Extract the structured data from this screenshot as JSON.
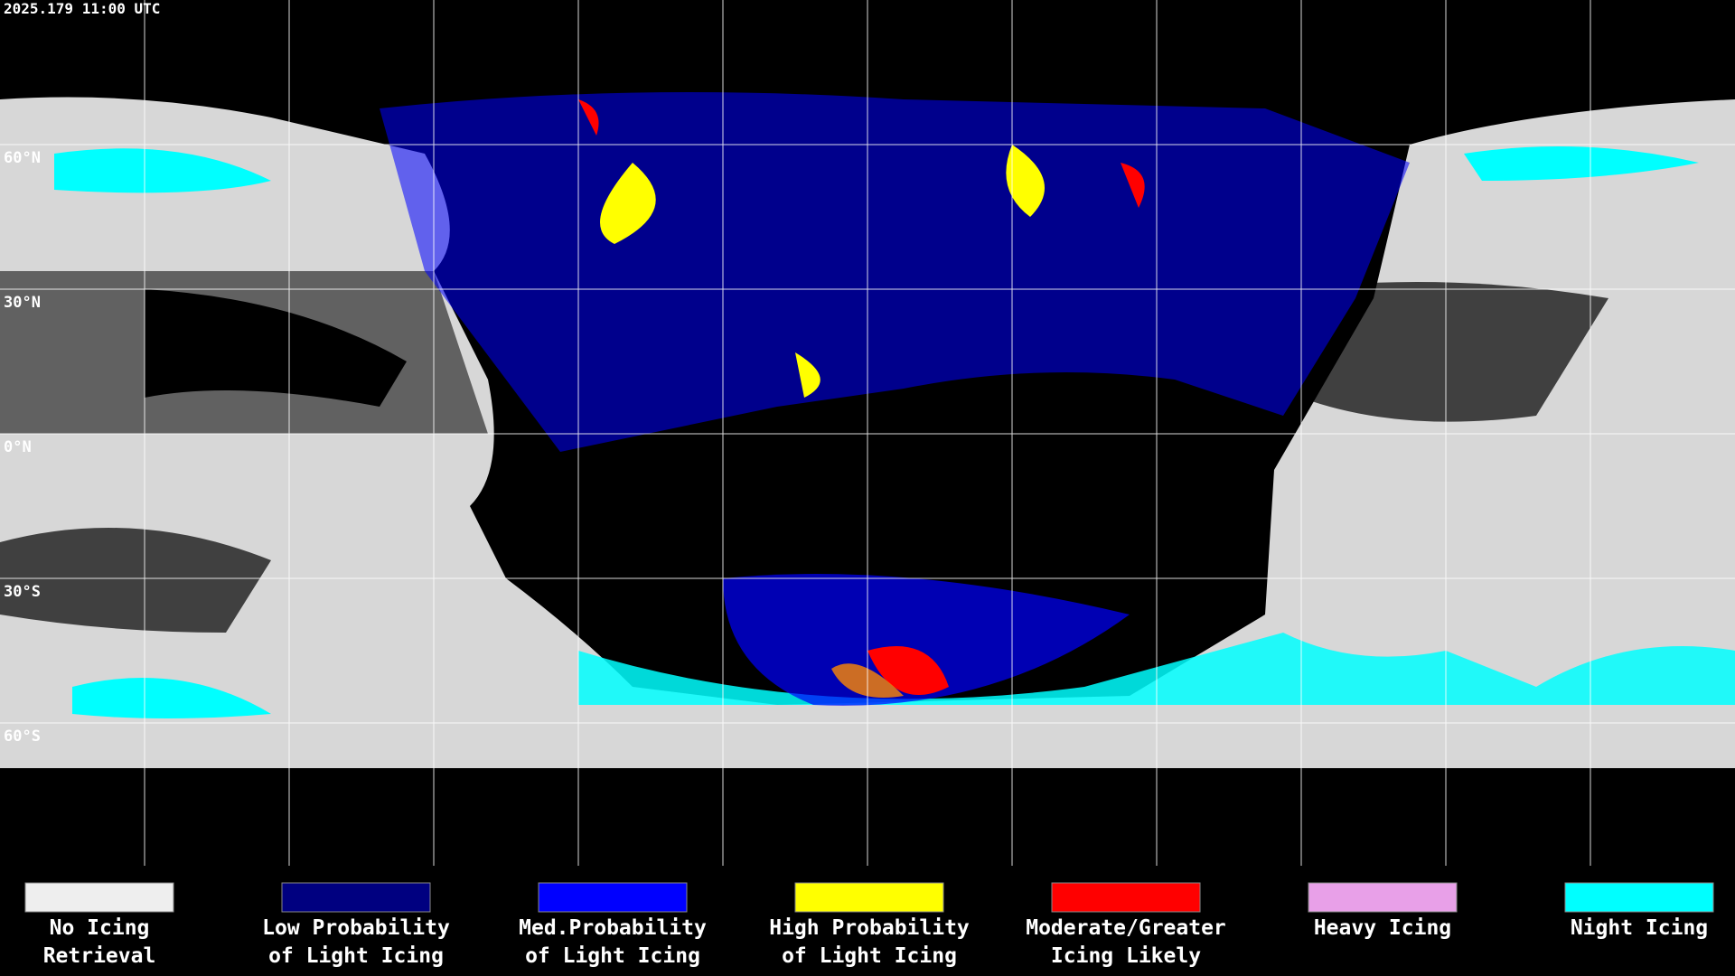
{
  "header": {
    "timestamp": "2025.179 11:00 UTC"
  },
  "latitude_labels": [
    "60°N",
    "30°N",
    "0°N",
    "30°S",
    "60°S"
  ],
  "legend": [
    {
      "color": "#eeeeee",
      "lines": [
        "No Icing",
        "Retrieval"
      ]
    },
    {
      "color": "#000080",
      "lines": [
        "Low Probability",
        "of Light Icing"
      ]
    },
    {
      "color": "#0000ff",
      "lines": [
        "Med.Probability",
        "of Light Icing"
      ]
    },
    {
      "color": "#ffff00",
      "lines": [
        "High Probability",
        "of Light Icing"
      ]
    },
    {
      "color": "#ff0000",
      "lines": [
        "Moderate/Greater",
        "Icing Likely"
      ]
    },
    {
      "color": "#e8a0e8",
      "lines": [
        "Heavy Icing"
      ]
    },
    {
      "color": "#00ffff",
      "lines": [
        "Night Icing"
      ]
    }
  ]
}
